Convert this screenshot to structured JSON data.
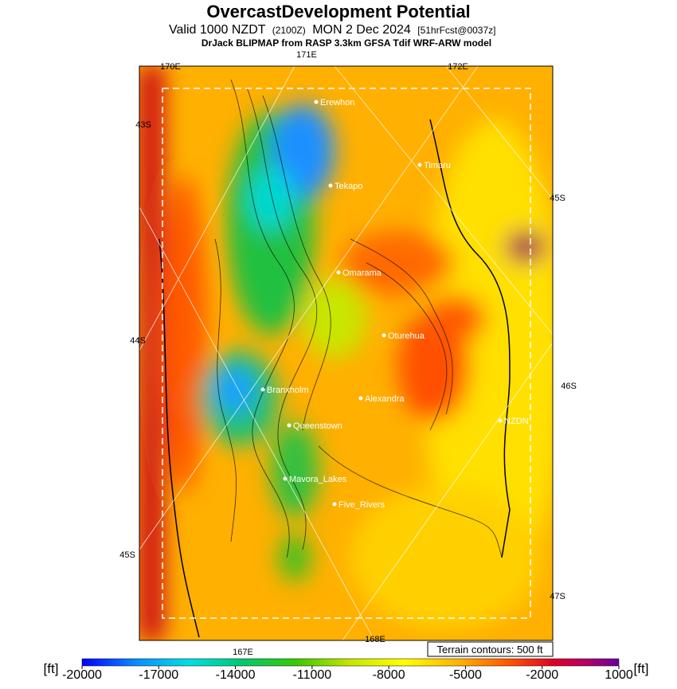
{
  "header": {
    "title": "OvercastDevelopment Potential",
    "valid": "Valid 1000 NZDT",
    "utc": "(2100Z)",
    "date": "MON 2 Dec 2024",
    "forecast": "[51hrFcst@0037z]",
    "subtitle": "DrJack BLIPMAP from RASP 3.3km GFSA Tdif WRF-ARW model"
  },
  "map": {
    "grid_labels": [
      "170E",
      "171E",
      "172E",
      "43S",
      "44S",
      "45S",
      "45S",
      "46S",
      "47S",
      "167E",
      "168E"
    ],
    "places": [
      "Erewhon",
      "Timaru",
      "Tekapo",
      "Omarama",
      "Oturehua",
      "Alexandra",
      "Branxholm",
      "NZDN",
      "Queenstown",
      "Mavora_Lakes",
      "Five_Rivers"
    ],
    "terrain_note": "Terrain contours: 500 ft"
  },
  "colorbar": {
    "unit_left": "[ft]",
    "unit_right": "[ft]",
    "ticks": [
      -20000,
      -17000,
      -14000,
      -11000,
      -8000,
      -5000,
      -2000,
      1000
    ]
  }
}
